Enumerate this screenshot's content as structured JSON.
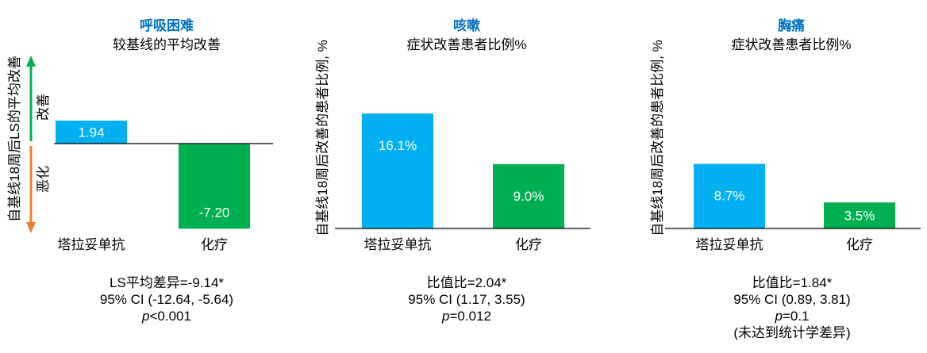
{
  "colors": {
    "tagrisso": "#00B0F0",
    "chemo": "#00B050",
    "title_blue": "#0070C0",
    "improve_arrow": "#00B050",
    "worsen_arrow": "#ED7D31"
  },
  "chart_data": [
    {
      "type": "bar",
      "title": "呼吸困难",
      "subtitle": "较基线的平均改善",
      "ylabel": "自基线18周后LS的平均改善",
      "improve_label": "改善",
      "worsen_label": "恶化",
      "categories": [
        "塔拉妥单抗",
        "化疗"
      ],
      "values": [
        1.94,
        -7.2
      ],
      "value_labels": [
        "1.94",
        "-7.20"
      ],
      "ylim": [
        -8.5,
        9.5
      ],
      "grid": false,
      "stats": {
        "line1": "LS平均差异=-9.14*",
        "line2": "95% CI (-12.64, -5.64)",
        "p_symbol": "p",
        "p_value": "<0.001",
        "note": ""
      }
    },
    {
      "type": "bar",
      "title": "咳嗽",
      "subtitle": "症状改善患者比例%",
      "ylabel": "自基线18周后改善的患者比例, %",
      "categories": [
        "塔拉妥单抗",
        "化疗"
      ],
      "values": [
        16.1,
        9.0
      ],
      "value_labels": [
        "16.1%",
        "9.0%"
      ],
      "ylim": [
        0,
        23
      ],
      "grid": false,
      "stats": {
        "line1": "比值比=2.04*",
        "line2": "95% CI (1.17, 3.55)",
        "p_symbol": "p",
        "p_value": "=0.012",
        "note": ""
      }
    },
    {
      "type": "bar",
      "title": "胸痛",
      "subtitle": "症状改善患者比例%",
      "ylabel": "自基线18周后改善的患者比例, %",
      "categories": [
        "塔拉妥单抗",
        "化疗"
      ],
      "values": [
        8.7,
        3.5
      ],
      "value_labels": [
        "8.7%",
        "3.5%"
      ],
      "ylim": [
        0,
        13.5
      ],
      "grid": false,
      "stats": {
        "line1": "比值比=1.84*",
        "line2": "95% CI (0.89, 3.81)",
        "p_symbol": "p",
        "p_value": "=0.1",
        "note": "(未达到统计学差异)"
      }
    }
  ]
}
